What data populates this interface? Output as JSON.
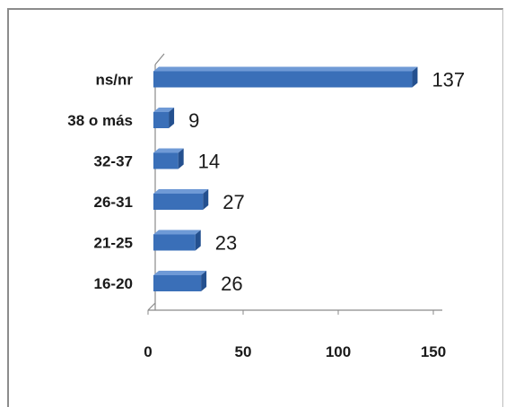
{
  "chart_data": {
    "type": "bar",
    "orientation": "horizontal",
    "style": "3d",
    "categories": [
      "16-20",
      "21-25",
      "26-31",
      "32-37",
      "38 o más",
      "ns/nr"
    ],
    "values": [
      26,
      23,
      27,
      14,
      9,
      137
    ],
    "data_labels": [
      "26",
      "23",
      "27",
      "14",
      "9",
      "137"
    ],
    "xlim": [
      0,
      150
    ],
    "x_ticks": [
      "0",
      "50",
      "100",
      "150"
    ],
    "grid": false,
    "legend": "none",
    "bar_color": "#3a6fb8",
    "bar_top_color": "#6f9ad6",
    "bar_end_color": "#24508f"
  }
}
